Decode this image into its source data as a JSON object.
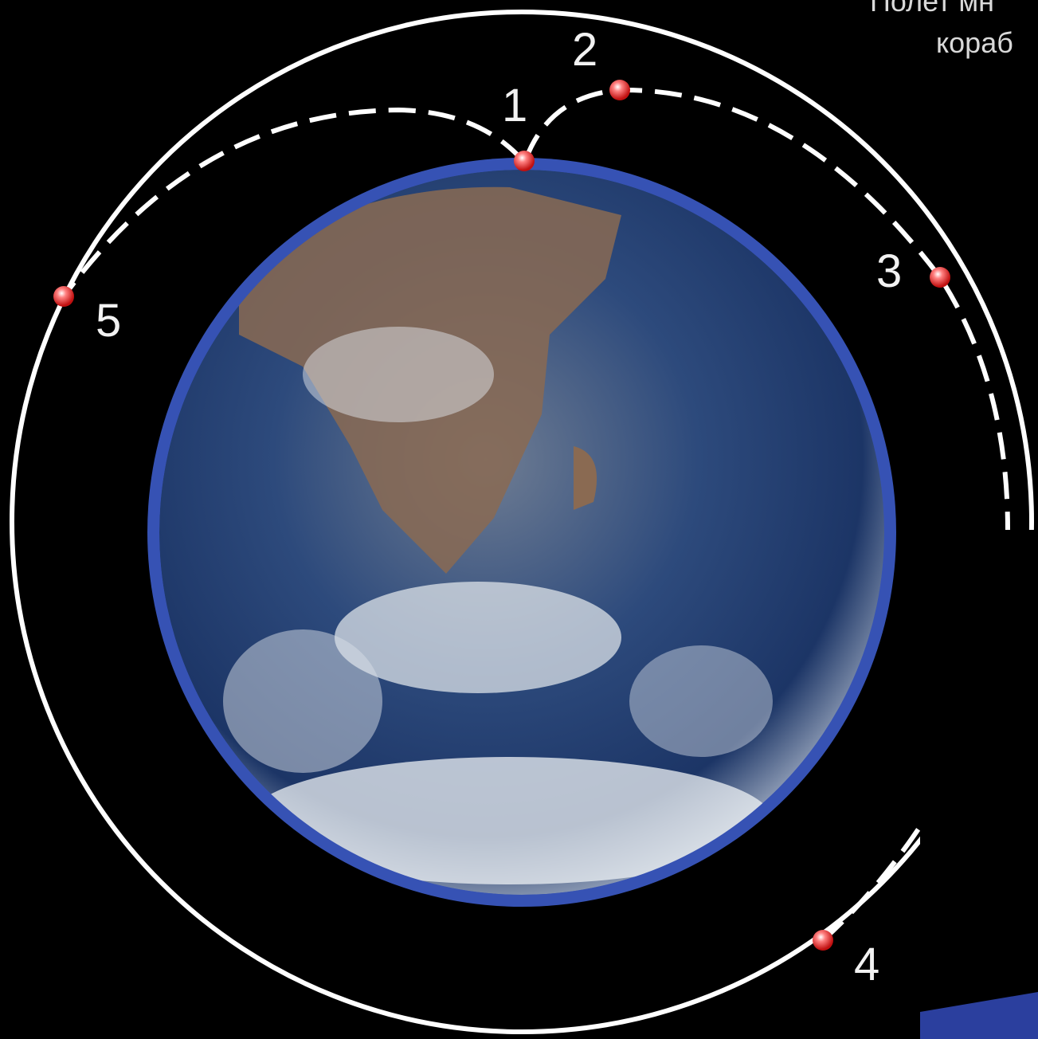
{
  "title": {
    "line1": "Полет мн",
    "line2": "кораб"
  },
  "points": [
    {
      "label": "1"
    },
    {
      "label": "2"
    },
    {
      "label": "3"
    },
    {
      "label": "4"
    },
    {
      "label": "5"
    }
  ]
}
